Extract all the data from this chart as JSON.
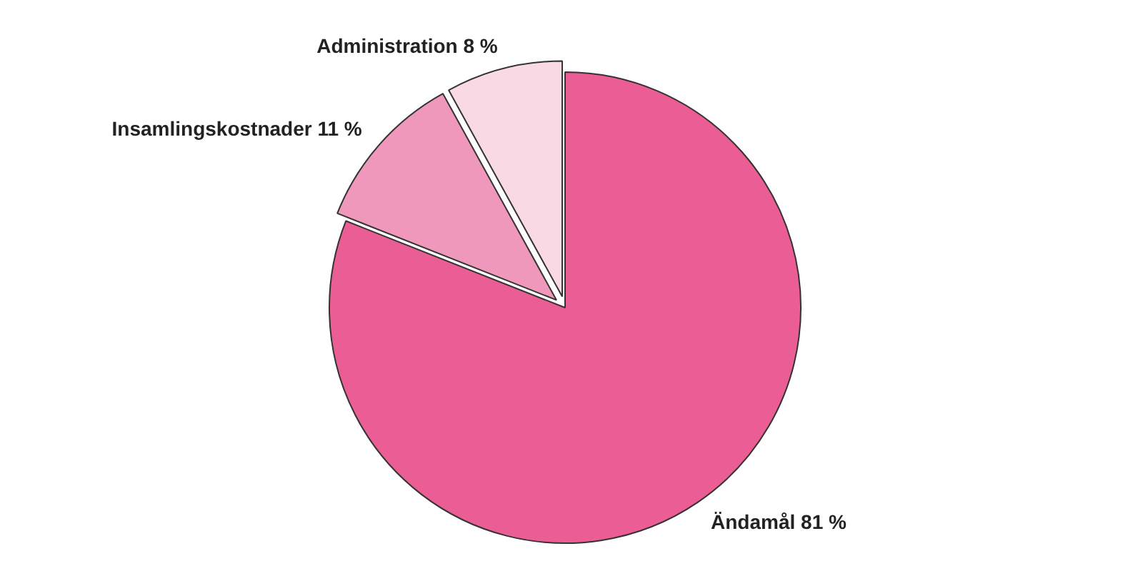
{
  "chart_data": {
    "type": "pie",
    "categories": [
      "Ändamål",
      "Insamlingskostnader",
      "Administration"
    ],
    "values": [
      81,
      11,
      8
    ],
    "value_labels": [
      "81 %",
      "11 %",
      "8 %"
    ],
    "colors": [
      "#eb5e95",
      "#f098bb",
      "#f8d9e4"
    ],
    "legend": false
  }
}
